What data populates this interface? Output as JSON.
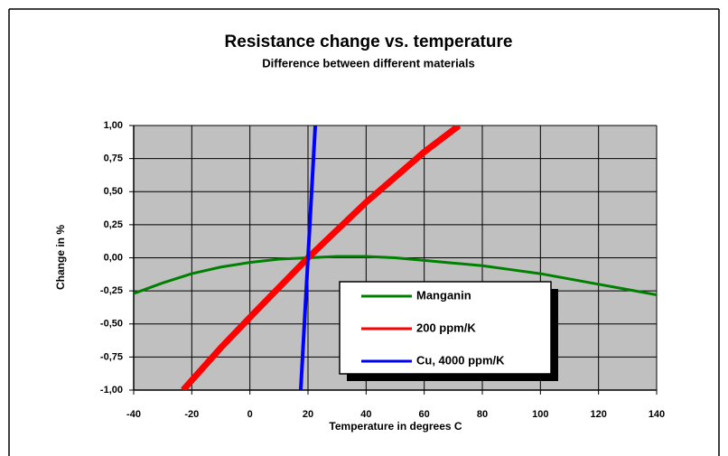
{
  "chart_data": {
    "type": "line",
    "title": "Resistance change vs. temperature",
    "subtitle": "Difference between different materials",
    "x_label": "Temperature in degrees C",
    "y_label": "Change in %",
    "xlim": [
      -40,
      140
    ],
    "xticks": [
      -40,
      -20,
      0,
      20,
      40,
      60,
      80,
      100,
      120,
      140
    ],
    "ylim": [
      -1,
      1
    ],
    "yticks": [
      {
        "value": -1,
        "label": "-1,00"
      },
      {
        "value": -0.75,
        "label": "-0,75"
      },
      {
        "value": -0.5,
        "label": "-0,50"
      },
      {
        "value": -0.25,
        "label": "-0,25"
      },
      {
        "value": 0,
        "label": "0,00"
      },
      {
        "value": 0.25,
        "label": "0,25"
      },
      {
        "value": 0.5,
        "label": "0,50"
      },
      {
        "value": 0.75,
        "label": "0,75"
      },
      {
        "value": 1,
        "label": "1,00"
      }
    ],
    "grid": true,
    "plot_background": "#c0c0c0",
    "series": [
      {
        "name": "Manganin",
        "color": "#008000",
        "x": [
          -40,
          -30,
          -20,
          -10,
          0,
          10,
          20,
          30,
          40,
          50,
          60,
          70,
          80,
          90,
          100,
          110,
          120,
          130,
          140
        ],
        "values": [
          -0.27,
          -0.19,
          -0.12,
          -0.07,
          -0.035,
          -0.01,
          0,
          0.01,
          0.01,
          0,
          -0.02,
          -0.04,
          -0.06,
          -0.09,
          -0.12,
          -0.16,
          -0.2,
          -0.24,
          -0.28
        ]
      },
      {
        "name": "200 ppm/K",
        "color": "#ff0000",
        "x": [
          -23,
          -10,
          0,
          20,
          40,
          60,
          72
        ],
        "values": [
          -1,
          -0.68,
          -0.45,
          0,
          0.42,
          0.8,
          1
        ]
      },
      {
        "name": "Cu, 4000 ppm/K",
        "color": "#0000ff",
        "x": [
          17.5,
          22.5
        ],
        "values": [
          -1,
          1
        ]
      }
    ]
  }
}
